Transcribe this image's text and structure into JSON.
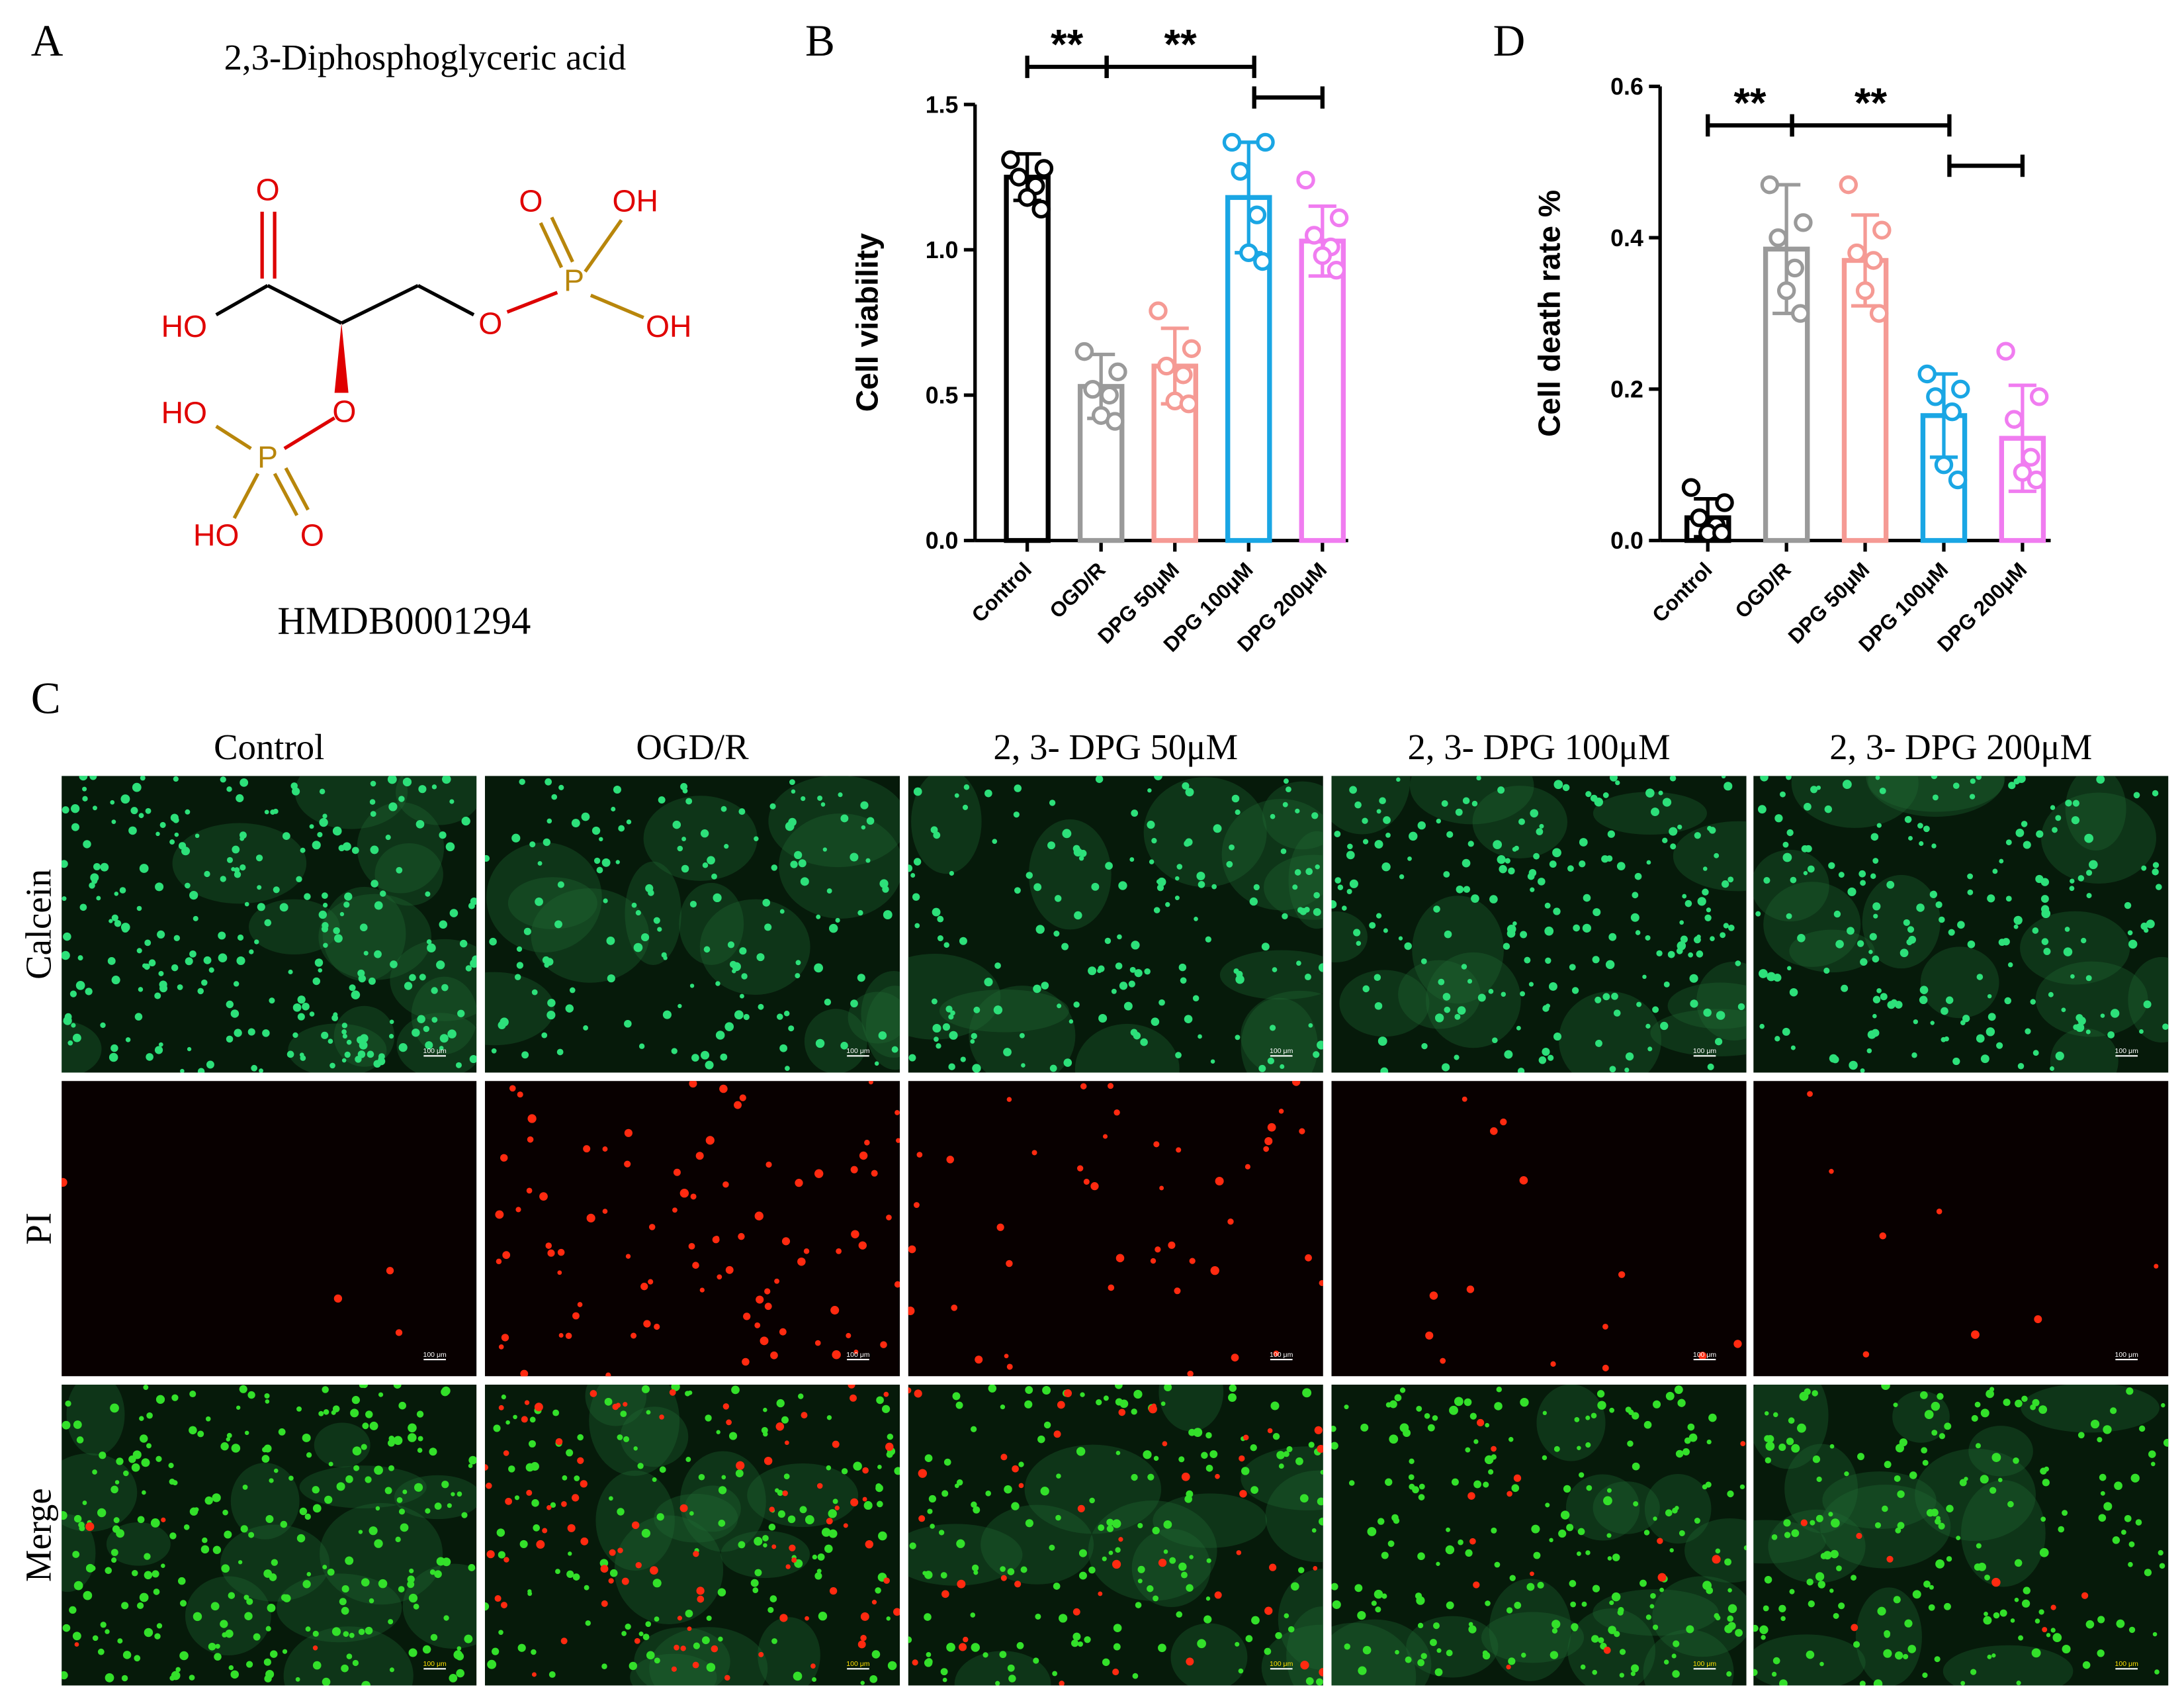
{
  "panel_a": {
    "label": "A",
    "title": "2,3-Diphosphoglyceric acid",
    "atoms": [
      "O",
      "HO",
      "O",
      "P",
      "O",
      "OH",
      "OH",
      "O",
      "HO",
      "P",
      "HO",
      "O"
    ],
    "identifier": "HMDB0001294"
  },
  "chart_data": [
    {
      "type": "bar",
      "panel_label": "B",
      "ylabel": "Cell viability",
      "categories": [
        "Control",
        "OGD/R",
        "DPG 50μM",
        "DPG 100μM",
        "DPG 200μM"
      ],
      "values": [
        1.25,
        0.53,
        0.6,
        1.18,
        1.03
      ],
      "errors": [
        0.08,
        0.11,
        0.13,
        0.19,
        0.12
      ],
      "points": [
        [
          1.31,
          1.28,
          1.25,
          1.22,
          1.18,
          1.14
        ],
        [
          0.65,
          0.58,
          0.52,
          0.5,
          0.43,
          0.41
        ],
        [
          0.79,
          0.66,
          0.6,
          0.57,
          0.48,
          0.47
        ],
        [
          1.37,
          1.37,
          1.27,
          1.12,
          0.99,
          0.96
        ],
        [
          1.24,
          1.11,
          1.05,
          1.01,
          0.98,
          0.93
        ]
      ],
      "colors": [
        "#000000",
        "#9a9a9a",
        "#f59a94",
        "#1aa6e4",
        "#f07cf0"
      ],
      "ylim": [
        0,
        1.5
      ],
      "yticks": [
        {
          "value": 0,
          "label": "0.0"
        },
        0.5,
        {
          "value": 1,
          "label": "1.0"
        },
        1.5
      ],
      "significance": [
        "**",
        "**"
      ]
    },
    {
      "type": "bar",
      "panel_label": "D",
      "ylabel": "Cell death rate %",
      "categories": [
        "Control",
        "OGD/R",
        "DPG 50μM",
        "DPG 100μM",
        "DPG 200μM"
      ],
      "values": [
        0.03,
        0.385,
        0.37,
        0.165,
        0.135
      ],
      "errors": [
        0.025,
        0.085,
        0.06,
        0.055,
        0.07
      ],
      "points": [
        [
          0.07,
          0.05,
          0.03,
          0.02,
          0.01,
          0.01
        ],
        [
          0.47,
          0.42,
          0.4,
          0.36,
          0.33,
          0.3
        ],
        [
          0.47,
          0.41,
          0.38,
          0.37,
          0.33,
          0.3
        ],
        [
          0.22,
          0.2,
          0.19,
          0.17,
          0.1,
          0.08
        ],
        [
          0.25,
          0.19,
          0.16,
          0.11,
          0.09,
          0.08
        ]
      ],
      "colors": [
        "#000000",
        "#9a9a9a",
        "#f59a94",
        "#1aa6e4",
        "#f07cf0"
      ],
      "ylim": [
        0,
        0.6
      ],
      "yticks": [
        {
          "value": 0,
          "label": "0.0"
        },
        0.2,
        0.4,
        0.6
      ],
      "significance": [
        "**",
        "**"
      ]
    }
  ],
  "panel_c": {
    "label": "C",
    "columns": [
      "Control",
      "OGD/R",
      "2, 3- DPG 50μM",
      "2, 3- DPG 100μM",
      "2, 3- DPG 200μM"
    ],
    "rows": [
      "Calcein",
      "PI",
      "Merge"
    ],
    "scale_bar": "100 μm"
  }
}
